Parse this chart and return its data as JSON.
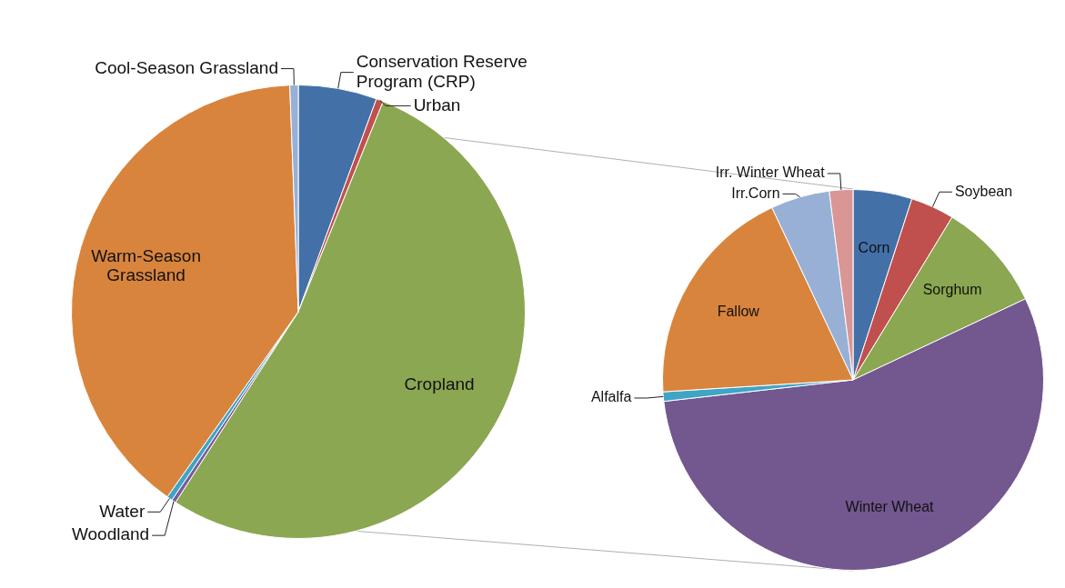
{
  "chart_data": [
    {
      "type": "pie",
      "categories": [
        "Conservation Reserve Program (CRP)",
        "Urban",
        "Cropland",
        "Woodland",
        "Water",
        "Warm-Season Grassland",
        "Cool-Season Grassland"
      ],
      "values": [
        5.6,
        0.5,
        53,
        0.3,
        0.4,
        39.6,
        0.6
      ],
      "colors": [
        "#4470a8",
        "#c0504d",
        "#8ba751",
        "#7a5c9a",
        "#3ea5c6",
        "#d9843d",
        "#98b0d6"
      ]
    },
    {
      "type": "pie",
      "categories": [
        "Corn",
        "Soybean",
        "Sorghum",
        "Winter Wheat",
        "Alfalfa",
        "Fallow",
        "Irr.Corn",
        "Irr. Winter Wheat"
      ],
      "values": [
        5,
        3.7,
        9.3,
        55.2,
        0.8,
        19,
        5,
        2
      ],
      "colors": [
        "#4470a8",
        "#c0504d",
        "#8ba751",
        "#73578f",
        "#3ea5c6",
        "#d9843d",
        "#98b0d6",
        "#d99694"
      ]
    }
  ]
}
